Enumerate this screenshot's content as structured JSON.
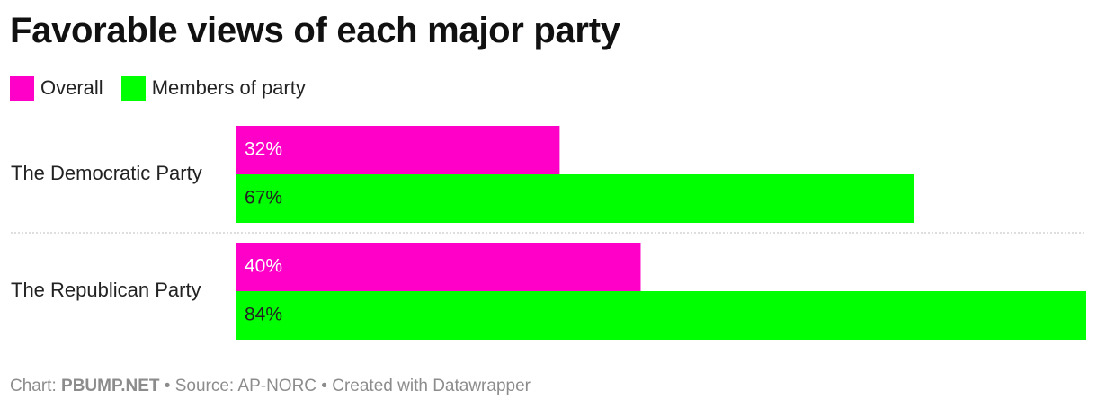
{
  "title": "Favorable views of each major party",
  "legend": [
    {
      "label": "Overall",
      "color": "#ff00c8"
    },
    {
      "label": "Members of party",
      "color": "#00ff00"
    }
  ],
  "footer": {
    "chart_prefix": "Chart: ",
    "credit": "PBUMP.NET",
    "sep1": " • ",
    "source": "Source: AP-NORC",
    "sep2": " • ",
    "created": "Created with Datawrapper"
  },
  "chart_data": {
    "type": "bar",
    "orientation": "horizontal",
    "title": "Favorable views of each major party",
    "categories": [
      "The Democratic Party",
      "The Republican Party"
    ],
    "series": [
      {
        "name": "Overall",
        "values": [
          32,
          40
        ],
        "labels": [
          "32%",
          "40%"
        ],
        "color": "#ff00c8",
        "label_color": "#ffffff"
      },
      {
        "name": "Members of party",
        "values": [
          67,
          84
        ],
        "labels": [
          "67%",
          "84%"
        ],
        "color": "#00ff00",
        "label_color": "#222222"
      }
    ],
    "xlim": [
      0,
      84
    ],
    "grid": false,
    "legend_position": "top-left"
  }
}
